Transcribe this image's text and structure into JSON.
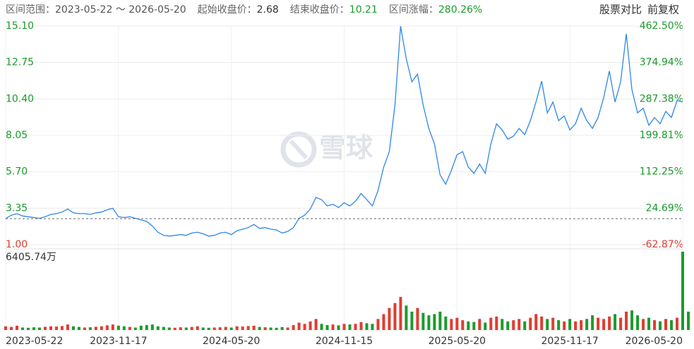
{
  "header": {
    "items": [
      {
        "label": "区间范围：",
        "value": "2023-05-22 ～ 2026-05-20",
        "color": "#555555"
      },
      {
        "label": "起始收盘价：",
        "value": "2.68",
        "color": "#333333"
      },
      {
        "label": "结束收盘价：",
        "value": "10.21",
        "color": "#1a9b2c"
      },
      {
        "label": "区间涨幅：",
        "value": "280.26%",
        "color": "#1a9b2c"
      }
    ],
    "buttons": [
      "股票对比",
      "前复权"
    ]
  },
  "chart_data": {
    "type": "line",
    "watermark": "雪球",
    "series": [
      {
        "color": "#2f87e8",
        "values": [
          2.68,
          2.9,
          3.0,
          2.85,
          2.8,
          2.75,
          2.7,
          2.8,
          2.95,
          3.0,
          3.1,
          3.3,
          3.05,
          3.0,
          3.0,
          2.95,
          3.05,
          3.1,
          3.25,
          3.35,
          2.8,
          2.75,
          2.8,
          2.7,
          2.6,
          2.5,
          2.2,
          1.8,
          1.6,
          1.55,
          1.6,
          1.65,
          1.6,
          1.75,
          1.8,
          1.7,
          1.55,
          1.6,
          1.75,
          1.8,
          1.65,
          1.9,
          2.0,
          2.1,
          2.3,
          2.05,
          2.1,
          2.0,
          1.95,
          1.75,
          1.85,
          2.1,
          2.7,
          2.9,
          3.3,
          4.05,
          3.9,
          3.5,
          3.6,
          3.4,
          3.7,
          3.5,
          3.8,
          4.3,
          3.9,
          3.5,
          4.5,
          6.0,
          7.0,
          10.0,
          15.1,
          13.0,
          11.5,
          12.0,
          10.0,
          8.5,
          7.5,
          5.5,
          4.9,
          5.8,
          6.8,
          7.0,
          6.0,
          5.6,
          6.2,
          5.6,
          7.5,
          8.8,
          8.4,
          7.8,
          8.0,
          8.5,
          8.1,
          9.0,
          10.2,
          11.55,
          9.5,
          10.2,
          9.0,
          9.3,
          8.4,
          8.8,
          9.8,
          9.0,
          8.5,
          9.2,
          10.5,
          12.2,
          10.2,
          11.5,
          14.6,
          11.0,
          9.5,
          9.8,
          8.7,
          9.2,
          8.8,
          9.6,
          9.2,
          10.3,
          10.21
        ]
      }
    ],
    "baseline": 2.68,
    "xlim": [
      0,
      120
    ],
    "xticks": [
      {
        "value": 0,
        "label": "2023-05-22"
      },
      {
        "value": 20,
        "label": "2023-11-17"
      },
      {
        "value": 40,
        "label": "2024-05-20"
      },
      {
        "value": 60,
        "label": "2024-11-15"
      },
      {
        "value": 80,
        "label": "2025-05-20"
      },
      {
        "value": 100,
        "label": "2025-11-17"
      },
      {
        "value": 120,
        "label": "2026-05-20"
      }
    ],
    "ylim": [
      1.0,
      15.1
    ],
    "yticks": [
      {
        "value": 15.1,
        "label": "15.10"
      },
      {
        "value": 12.75,
        "label": "12.75"
      },
      {
        "value": 10.4,
        "label": "10.40"
      },
      {
        "value": 8.05,
        "label": "8.05"
      },
      {
        "value": 5.7,
        "label": "5.70"
      },
      {
        "value": 3.35,
        "label": "3.35"
      },
      {
        "value": 1.0,
        "label": "1.00"
      }
    ],
    "y2lim": [
      -62.87,
      462.5
    ],
    "y2ticks": [
      {
        "value": 462.5,
        "label": "462.50%"
      },
      {
        "value": 374.94,
        "label": "374.94%"
      },
      {
        "value": 287.38,
        "label": "287.38%"
      },
      {
        "value": 199.81,
        "label": "199.81%"
      },
      {
        "value": 112.25,
        "label": "112.25%"
      },
      {
        "value": 24.69,
        "label": "24.69%"
      },
      {
        "value": -62.87,
        "label": "-62.87%"
      }
    ],
    "up_color": "#e03c31",
    "down_color": "#1a9b2c",
    "grid": true,
    "volume": {
      "ylim": [
        0,
        6405.74
      ],
      "yticks": [
        {
          "value": 6405.74,
          "label": "6405.74万"
        }
      ],
      "values": [
        300,
        250,
        350,
        200,
        180,
        220,
        200,
        260,
        300,
        280,
        320,
        450,
        300,
        250,
        200,
        220,
        260,
        300,
        380,
        450,
        350,
        300,
        250,
        200,
        350,
        400,
        450,
        300,
        250,
        200,
        180,
        220,
        200,
        250,
        300,
        200,
        180,
        200,
        220,
        250,
        200,
        300,
        280,
        320,
        350,
        250,
        220,
        200,
        180,
        240,
        200,
        400,
        600,
        500,
        700,
        900,
        500,
        400,
        450,
        380,
        500,
        450,
        500,
        650,
        550,
        500,
        900,
        1300,
        1800,
        2200,
        2700,
        2000,
        1500,
        1800,
        1400,
        1200,
        1300,
        1500,
        1100,
        900,
        1000,
        800,
        700,
        650,
        900,
        600,
        1000,
        1100,
        900,
        700,
        800,
        900,
        700,
        1000,
        1300,
        1100,
        900,
        1000,
        800,
        700,
        900,
        700,
        800,
        900,
        1200,
        1000,
        900,
        1100,
        1300,
        1000,
        1500,
        1600,
        1200,
        900,
        1000,
        800,
        700,
        900,
        800,
        1000,
        6405.74,
        1500
      ]
    }
  }
}
